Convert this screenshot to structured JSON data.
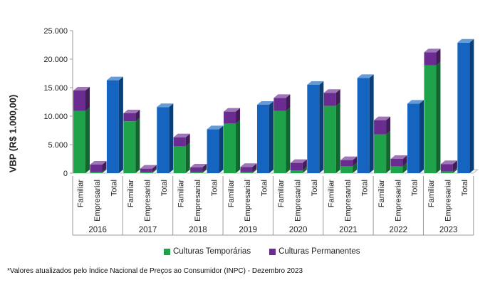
{
  "chart_data": {
    "type": "bar",
    "stacked": true,
    "three_d": true,
    "ylabel": "VBP (R$ 1.000,00)",
    "ylim": [
      0,
      25000
    ],
    "yticks": [
      "0",
      "5.000",
      "10.000",
      "15.000",
      "20.000",
      "25.000"
    ],
    "ytick_values": [
      0,
      5000,
      10000,
      15000,
      20000,
      25000
    ],
    "grid": false,
    "legend_position": "bottom",
    "groups": [
      "2016",
      "2017",
      "2018",
      "2019",
      "2020",
      "2021",
      "2022",
      "2023"
    ],
    "categories": [
      "Familiar",
      "Empresarial",
      "Total"
    ],
    "series": [
      {
        "name": "Culturas Temporárias",
        "color": "#1fa34a",
        "values": [
          [
            10900,
            200,
            null
          ],
          [
            9100,
            200,
            null
          ],
          [
            4700,
            200,
            null
          ],
          [
            8700,
            200,
            null
          ],
          [
            10900,
            500,
            null
          ],
          [
            11800,
            1200,
            null
          ],
          [
            6800,
            1200,
            null
          ],
          [
            18900,
            300,
            null
          ]
        ]
      },
      {
        "name": "Culturas Permanentes",
        "color": "#6a2c90",
        "values": [
          [
            3600,
            1300,
            null
          ],
          [
            1400,
            600,
            null
          ],
          [
            1600,
            800,
            null
          ],
          [
            2100,
            900,
            null
          ],
          [
            2300,
            1300,
            null
          ],
          [
            2300,
            1100,
            null
          ],
          [
            2500,
            1300,
            null
          ],
          [
            2300,
            1300,
            null
          ]
        ]
      },
      {
        "name": "Total",
        "color": "#1565c0",
        "values": [
          [
            null,
            null,
            16300
          ],
          [
            null,
            null,
            11600
          ],
          [
            null,
            null,
            7700
          ],
          [
            null,
            null,
            12000
          ],
          [
            null,
            null,
            15500
          ],
          [
            null,
            null,
            16700
          ],
          [
            null,
            null,
            12200
          ],
          [
            null,
            null,
            22900
          ]
        ]
      }
    ]
  },
  "legend": {
    "items": [
      {
        "label": "Culturas Temporárias",
        "color": "#1fa34a"
      },
      {
        "label": "Culturas Permanentes",
        "color": "#6a2c90"
      }
    ]
  },
  "footnote": "*Valores atualizados pelo Índice Nacional de Preços ao Consumidor (INPC) - Dezembro 2023"
}
